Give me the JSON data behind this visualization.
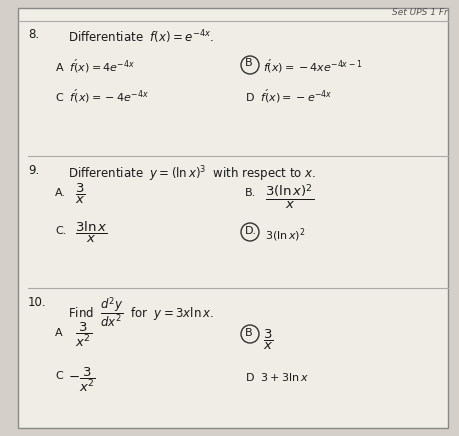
{
  "title": "Set UPS 1 Fr",
  "bg_color": "#d4cfc8",
  "paper_color": "#f0ede6",
  "line_color": "#aaaaaa",
  "text_color": "#1a1a1a",
  "q8_num": "8.",
  "q8_q": "Differentiate  $f(x) = e^{-4x}$.",
  "q8_A": "A  $f'(x) = 4e^{-4x}$",
  "q8_B": "$f'(x) = -4xe^{-4x-1}$",
  "q8_C": "C  $f'(x) = -4e^{-4x}$",
  "q8_D": "D  $f'(x) = -e^{-4x}$",
  "q8_B_label": "B",
  "q9_num": "9.",
  "q9_q": "Differentiate  $y = (\\ln x)^3$  with respect to $x$.",
  "q9_A_label": "A.",
  "q9_A_val": "$\\dfrac{3}{x}$",
  "q9_B_label": "B.",
  "q9_B_val": "$\\dfrac{3(\\ln x)^2}{x}$",
  "q9_C_label": "C.",
  "q9_C_val": "$\\dfrac{3\\ln x}{x}$",
  "q9_D_label": "D.",
  "q9_D_val": "$3(\\ln x)^2$",
  "q10_num": "10.",
  "q10_q_pre": "Find  $\\dfrac{d^2y}{dx^2}$  for  $y = 3x\\ln x$.",
  "q10_A_label": "A",
  "q10_A_val": "$\\dfrac{3}{x^2}$",
  "q10_B_label": "B",
  "q10_B_val": "$\\dfrac{3}{x}$",
  "q10_C_label": "C",
  "q10_C_val": "$-\\dfrac{3}{x^2}$",
  "q10_D_label": "D",
  "q10_D_val": "$3+3\\ln x$"
}
